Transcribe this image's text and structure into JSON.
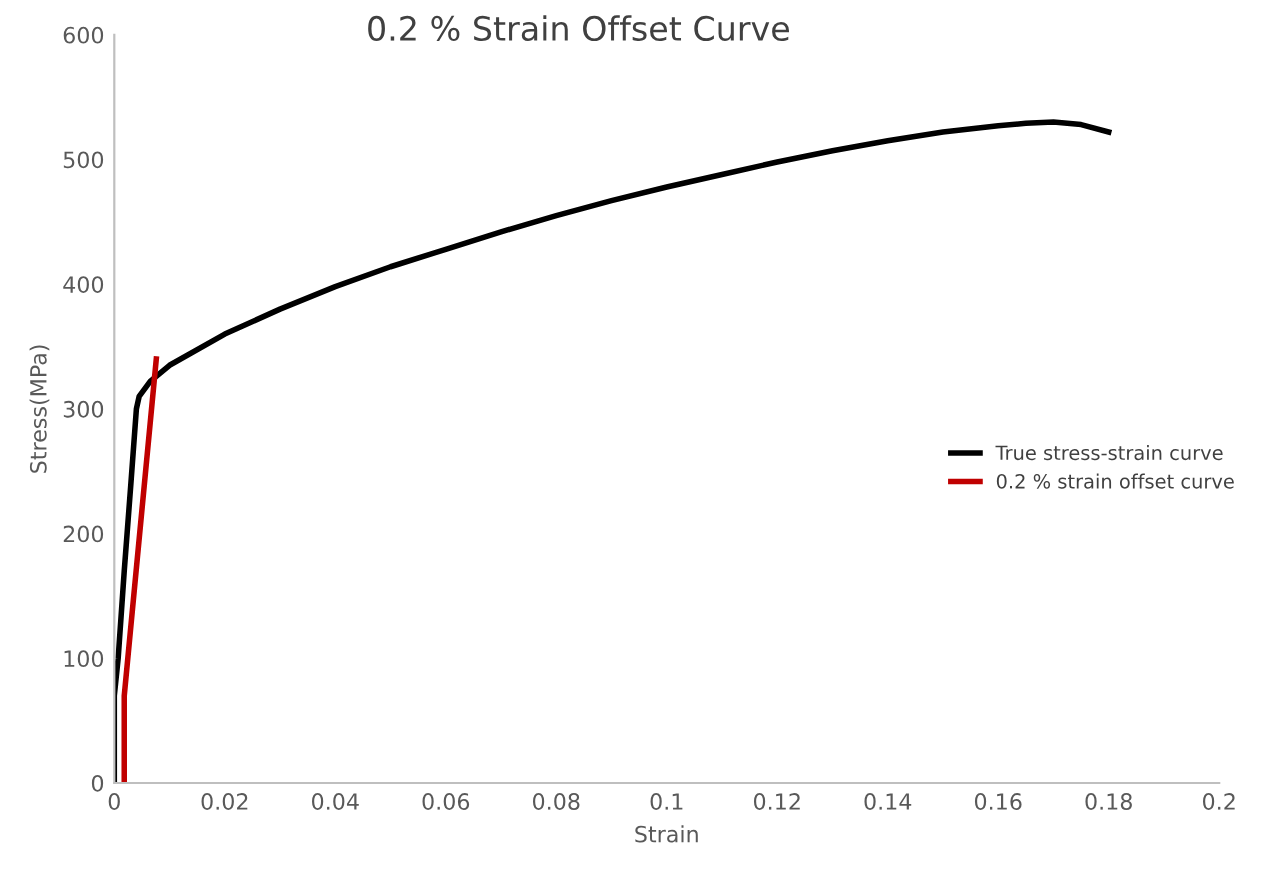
{
  "chart_data": {
    "type": "line",
    "title": "0.2 % Strain Offset Curve",
    "xlabel": "Strain",
    "ylabel": "Stress(MPa)",
    "xlim": [
      0,
      0.2
    ],
    "xticks": [
      {
        "value": 0,
        "label": "0"
      },
      0.02,
      0.04,
      0.06,
      0.08,
      0.1,
      0.12,
      0.14,
      0.16,
      0.18,
      0.2
    ],
    "ylim": [
      0,
      600
    ],
    "yticks": [
      0,
      100,
      200,
      300,
      400,
      500,
      600
    ],
    "grid": false,
    "legend": "right",
    "marker": "none",
    "line_style": "solid",
    "series": [
      {
        "name": "True stress-strain curve",
        "color": "#000000",
        "x": [
          0,
          0,
          0.0007,
          0.0018,
          0.003,
          0.004,
          0.0045,
          0.0065,
          0.01,
          0.02,
          0.03,
          0.04,
          0.05,
          0.06,
          0.07,
          0.08,
          0.09,
          0.1,
          0.11,
          0.12,
          0.13,
          0.14,
          0.15,
          0.16,
          0.165,
          0.17,
          0.175,
          0.18
        ],
        "values": [
          0,
          70,
          100,
          170,
          240,
          300,
          310,
          322,
          335,
          360,
          380,
          398,
          414,
          428,
          442,
          455,
          467,
          478,
          488,
          498,
          507,
          515,
          522,
          527,
          529,
          530,
          528,
          522
        ]
      },
      {
        "name": "0.2 % strain offset curve",
        "color": "#c00000",
        "x": [
          0.0018,
          0.0018,
          0.0076
        ],
        "values": [
          0,
          70,
          340
        ]
      }
    ]
  }
}
